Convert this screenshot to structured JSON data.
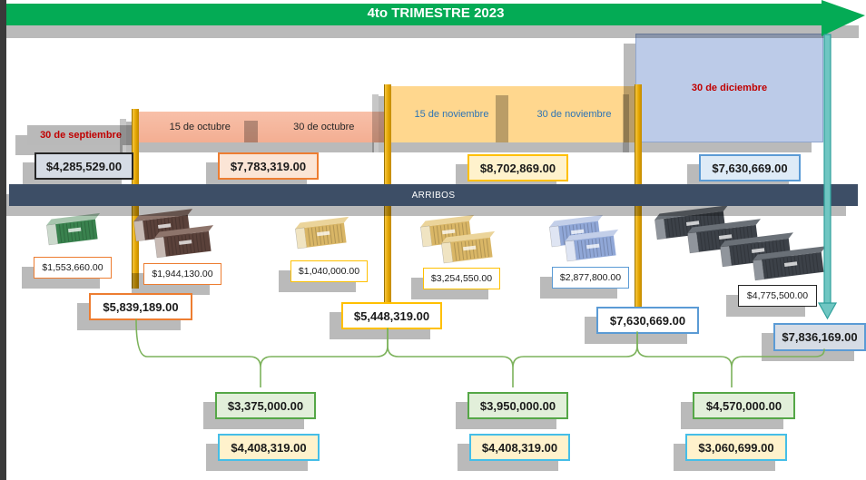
{
  "banner": {
    "title": "4to TRIMESTRE 2023",
    "color": "#04ab55"
  },
  "arribos_bar": {
    "label": "ARRIBOS"
  },
  "dates": {
    "september": "30 de septiembre",
    "october_first": "15 de octubre",
    "october_second": "30 de octubre",
    "november_first": "15 de noviembre",
    "november_second": "30 de noviembre",
    "december": "30 de diciembre"
  },
  "period_totals": [
    {
      "value": "$4,285,529.00"
    },
    {
      "value": "$7,783,319.00"
    },
    {
      "value": "$8,702,869.00"
    },
    {
      "value": "$7,630,669.00"
    }
  ],
  "shipments": [
    {
      "value": "$1,553,660.00",
      "containers": 1,
      "color": "green"
    },
    {
      "value": "$1,944,130.00",
      "containers": 2,
      "color": "brown"
    },
    {
      "value": "$1,040,000.00",
      "containers": 1,
      "color": "gold"
    },
    {
      "value": "$3,254,550.00",
      "containers": 2,
      "color": "gold"
    },
    {
      "value": "$2,877,800.00",
      "containers": 2,
      "color": "blue"
    },
    {
      "value": "$4,775,500.00",
      "containers": 4,
      "color": "dark"
    }
  ],
  "arrival_totals": [
    {
      "value": "$5,839,189.00"
    },
    {
      "value": "$5,448,319.00"
    },
    {
      "value": "$7,630,669.00"
    },
    {
      "value": "$7,836,169.00"
    }
  ],
  "group_totals_green": [
    {
      "value": "$3,375,000.00"
    },
    {
      "value": "$3,950,000.00"
    },
    {
      "value": "$4,570,000.00"
    }
  ],
  "group_totals_yellow": [
    {
      "value": "$4,408,319.00"
    },
    {
      "value": "$4,408,319.00"
    },
    {
      "value": "$3,060,699.00"
    }
  ],
  "colors": {
    "banner_green": "#04ab55",
    "arribos_navy": "#3d4e66",
    "pole_gold": "#e2a400",
    "teal_arrow": "#6fc6c2",
    "october_bar": "#f5b79e",
    "november_bar": "#ffd78e",
    "december_box": "#bccbe8",
    "date_red": "#c00000",
    "date_blue": "#2e74b5",
    "accent_orange": "#ed7d31",
    "accent_gold": "#ffc000",
    "accent_blue": "#5b9bd5",
    "accent_green": "#55a747",
    "accent_cyan": "#45bee8",
    "bracket_green": "#7cb25b"
  }
}
